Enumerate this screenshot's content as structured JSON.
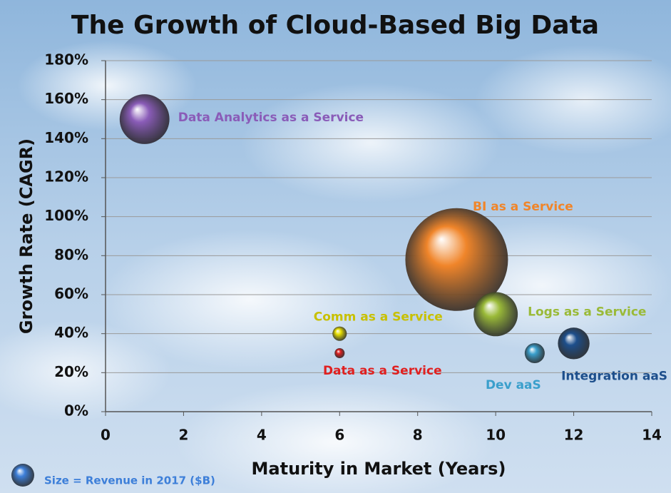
{
  "chart_data": {
    "type": "bubble",
    "title": "The Growth of Cloud-Based Big Data",
    "xlabel": "Maturity in Market (Years)",
    "ylabel": "Growth Rate (CAGR)",
    "size_note": "Size = Revenue in 2017 ($B)",
    "size_note_color": "#3d7fd9",
    "xlim": [
      0,
      14
    ],
    "xticks": [
      0,
      2,
      4,
      6,
      8,
      10,
      12,
      14
    ],
    "ylim": [
      0,
      180
    ],
    "yticks": [
      {
        "value": 0,
        "label": "0%"
      },
      {
        "value": 20,
        "label": "20%"
      },
      {
        "value": 40,
        "label": "40%"
      },
      {
        "value": 60,
        "label": "60%"
      },
      {
        "value": 80,
        "label": "80%"
      },
      {
        "value": 100,
        "label": "100%"
      },
      {
        "value": 120,
        "label": "120%"
      },
      {
        "value": 140,
        "label": "140%"
      },
      {
        "value": 160,
        "label": "160%"
      },
      {
        "value": 180,
        "label": "180%"
      }
    ],
    "grid": true,
    "series": [
      {
        "name": "Data Analytics as a Service",
        "color": "#8a5cb8",
        "x": [
          1
        ],
        "values": [
          150
        ],
        "sizes": [
          4.7
        ]
      },
      {
        "name": "BI as a Service",
        "color": "#f0852a",
        "x": [
          9
        ],
        "values": [
          78
        ],
        "sizes": [
          20
        ]
      },
      {
        "name": "Logs as a Service",
        "color": "#9aba38",
        "x": [
          10
        ],
        "values": [
          50
        ],
        "sizes": [
          3.7
        ]
      },
      {
        "name": "Comm as a Service",
        "color": "#e8e000",
        "x": [
          6
        ],
        "values": [
          40
        ],
        "sizes": [
          0.39
        ]
      },
      {
        "name": "Data as a Service",
        "color": "#e02020",
        "x": [
          6
        ],
        "values": [
          30
        ],
        "sizes": [
          0.19
        ]
      },
      {
        "name": "Dev aaS",
        "color": "#3a9fcc",
        "x": [
          11
        ],
        "values": [
          30
        ],
        "sizes": [
          0.76
        ]
      },
      {
        "name": "Integration aaS",
        "color": "#1d4f8c",
        "x": [
          12
        ],
        "values": [
          35
        ],
        "sizes": [
          1.9
        ]
      }
    ]
  }
}
